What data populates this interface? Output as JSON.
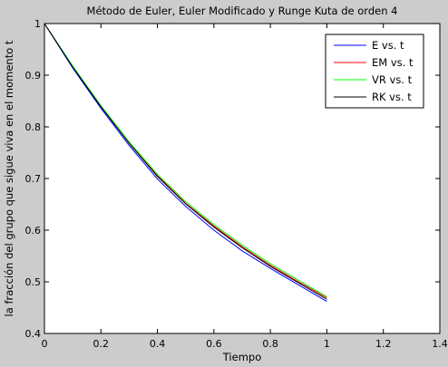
{
  "chart_data": {
    "type": "line",
    "title": "Método de Euler, Euler Modificado y Runge Kuta de orden 4",
    "xlabel": "Tiempo",
    "ylabel": "la fracción del grupo que sigue viva en el momento t",
    "xlim": [
      0,
      1.4
    ],
    "ylim": [
      0.4,
      1
    ],
    "xticks": [
      "0",
      "0.2",
      "0.4",
      "0.6",
      "0.8",
      "1",
      "1.2",
      "1.4"
    ],
    "yticks": [
      "0.4",
      "0.5",
      "0.6",
      "0.7",
      "0.8",
      "0.9",
      "1"
    ],
    "grid": false,
    "legend_position": "top-right",
    "x": [
      0,
      0.1,
      0.2,
      0.3,
      0.4,
      0.5,
      0.6,
      0.7,
      0.8,
      0.9,
      1.0
    ],
    "series": [
      {
        "name": "E vs. t",
        "color": "#0000ff",
        "values": [
          1,
          0.914,
          0.836,
          0.764,
          0.699,
          0.646,
          0.6,
          0.56,
          0.526,
          0.494,
          0.462
        ]
      },
      {
        "name": "EM vs. t",
        "color": "#ff0000",
        "values": [
          1,
          0.917,
          0.84,
          0.769,
          0.706,
          0.652,
          0.608,
          0.568,
          0.532,
          0.5,
          0.469
        ]
      },
      {
        "name": "VR vs. t",
        "color": "#00ff00",
        "values": [
          1,
          0.918,
          0.841,
          0.771,
          0.708,
          0.655,
          0.611,
          0.571,
          0.535,
          0.503,
          0.471
        ]
      },
      {
        "name": "RK vs. t",
        "color": "#000000",
        "values": [
          1,
          0.916,
          0.839,
          0.768,
          0.704,
          0.651,
          0.606,
          0.566,
          0.53,
          0.498,
          0.466
        ]
      }
    ]
  }
}
